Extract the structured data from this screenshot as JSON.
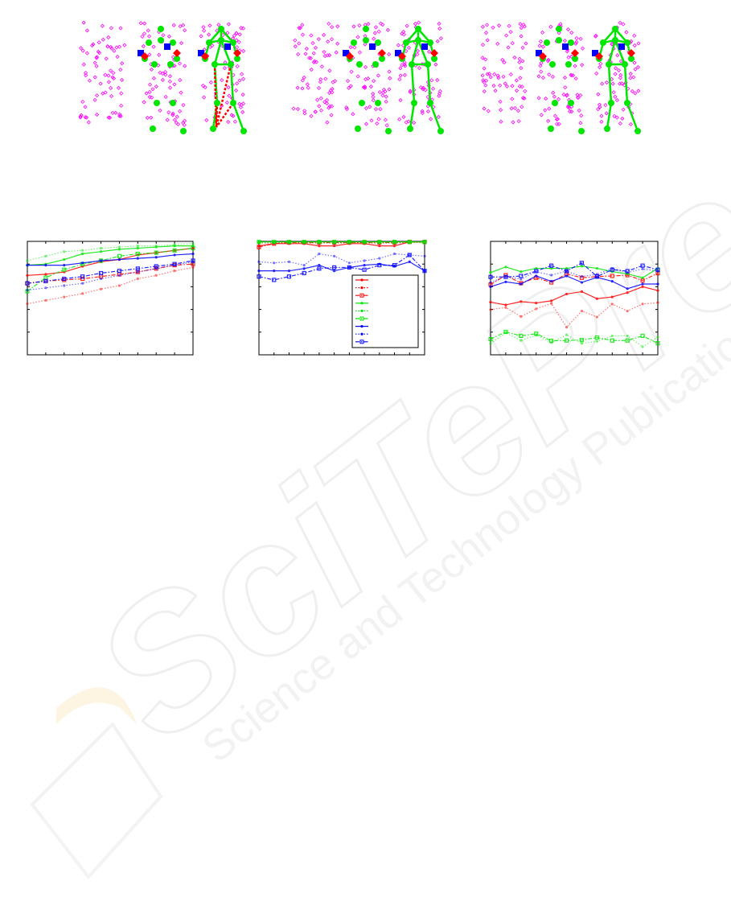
{
  "watermark": {
    "logo_text": "SciTePress",
    "tagline": "Science and Technology Publications"
  },
  "colors": {
    "red": "#ff0000",
    "green": "#00e600",
    "blue": "#0000ff",
    "magenta": "#ff00ff"
  },
  "figure_top": {
    "groups": 3,
    "panels_per_group": 3,
    "markers": [
      "magenta-diamond-points",
      "green-circle-joints",
      "blue-square-markers",
      "red-diamond-markers",
      "green-skeleton-lines",
      "red-dashed-skeleton-lines"
    ]
  },
  "chart_data": [
    {
      "type": "line",
      "title": "",
      "xlabel": "",
      "ylabel": "",
      "ylim": [
        0,
        1
      ],
      "grid": false,
      "legend": "none",
      "x": [
        1,
        2,
        3,
        4,
        5,
        6,
        7,
        8,
        9,
        10
      ],
      "series": [
        {
          "color": "#ff0000",
          "dash": "solid",
          "marker": "dot",
          "values": [
            0.7,
            0.71,
            0.73,
            0.78,
            0.82,
            0.84,
            0.88,
            0.9,
            0.92,
            0.94
          ]
        },
        {
          "color": "#ff0000",
          "dash": "dotted",
          "marker": "dot",
          "values": [
            0.45,
            0.48,
            0.51,
            0.54,
            0.58,
            0.61,
            0.67,
            0.7,
            0.74,
            0.77
          ]
        },
        {
          "color": "#ff0000",
          "dash": "dashdot",
          "marker": "square",
          "values": [
            0.63,
            0.65,
            0.66,
            0.67,
            0.69,
            0.71,
            0.73,
            0.76,
            0.79,
            0.8
          ]
        },
        {
          "color": "#00e600",
          "dash": "solid",
          "marker": "dot",
          "values": [
            0.79,
            0.8,
            0.84,
            0.89,
            0.91,
            0.93,
            0.94,
            0.95,
            0.96,
            0.96
          ]
        },
        {
          "color": "#00e600",
          "dash": "dotted",
          "marker": "dot",
          "values": [
            0.83,
            0.87,
            0.91,
            0.92,
            0.94,
            0.95,
            0.96,
            0.96,
            0.97,
            0.98
          ]
        },
        {
          "color": "#00e600",
          "dash": "dashdot",
          "marker": "square",
          "values": [
            0.56,
            0.68,
            0.75,
            0.8,
            0.83,
            0.87,
            0.89,
            0.9,
            0.92,
            0.94
          ]
        },
        {
          "color": "#0000ff",
          "dash": "solid",
          "marker": "dot",
          "values": [
            0.79,
            0.79,
            0.79,
            0.81,
            0.83,
            0.84,
            0.85,
            0.86,
            0.88,
            0.89
          ]
        },
        {
          "color": "#0000ff",
          "dash": "dotted",
          "marker": "dot",
          "values": [
            0.57,
            0.59,
            0.61,
            0.63,
            0.67,
            0.7,
            0.73,
            0.76,
            0.79,
            0.82
          ]
        },
        {
          "color": "#0000ff",
          "dash": "dashdot",
          "marker": "square",
          "values": [
            0.63,
            0.65,
            0.67,
            0.69,
            0.72,
            0.74,
            0.76,
            0.78,
            0.8,
            0.83
          ]
        }
      ]
    },
    {
      "type": "line",
      "title": "",
      "xlabel": "",
      "ylabel": "",
      "ylim": [
        0,
        1
      ],
      "grid": false,
      "legend": "bottom-right",
      "x": [
        1,
        2,
        3,
        4,
        5,
        6,
        7,
        8,
        9,
        10,
        11,
        12
      ],
      "series": [
        {
          "color": "#ff0000",
          "dash": "solid",
          "marker": "dot",
          "values": [
            0.96,
            0.98,
            0.98,
            0.98,
            0.96,
            0.96,
            0.98,
            0.98,
            0.96,
            0.96,
            0.995,
            0.995
          ]
        },
        {
          "color": "#ff0000",
          "dash": "dotted",
          "marker": "dot",
          "values": [
            0.985,
            0.985,
            0.985,
            0.985,
            0.985,
            0.985,
            0.985,
            0.985,
            0.985,
            0.985,
            0.99,
            0.99
          ]
        },
        {
          "color": "#ff0000",
          "dash": "dashdot",
          "marker": "square",
          "values": [
            0.95,
            0.98,
            0.99,
            0.99,
            0.99,
            0.99,
            0.99,
            0.99,
            0.99,
            0.99,
            0.995,
            0.995
          ]
        },
        {
          "color": "#00e600",
          "dash": "solid",
          "marker": "dot",
          "values": [
            0.995,
            0.995,
            0.995,
            0.995,
            0.995,
            0.995,
            0.995,
            0.995,
            0.995,
            0.995,
            0.995,
            0.995
          ]
        },
        {
          "color": "#00e600",
          "dash": "dotted",
          "marker": "dot",
          "values": [
            0.995,
            0.995,
            0.995,
            0.995,
            0.995,
            0.995,
            0.995,
            0.995,
            0.995,
            0.995,
            0.995,
            0.995
          ]
        },
        {
          "color": "#00e600",
          "dash": "dashdot",
          "marker": "square",
          "values": [
            0.995,
            0.995,
            0.995,
            0.995,
            0.995,
            0.995,
            0.995,
            0.995,
            0.995,
            0.995,
            0.995,
            0.995
          ]
        },
        {
          "color": "#0000ff",
          "dash": "solid",
          "marker": "dot",
          "values": [
            0.74,
            0.74,
            0.74,
            0.76,
            0.79,
            0.74,
            0.77,
            0.79,
            0.8,
            0.78,
            0.82,
            0.74
          ]
        },
        {
          "color": "#0000ff",
          "dash": "dotted",
          "marker": "dot",
          "values": [
            0.82,
            0.81,
            0.82,
            0.79,
            0.89,
            0.87,
            0.81,
            0.83,
            0.85,
            0.89,
            0.88,
            0.87
          ]
        },
        {
          "color": "#0000ff",
          "dash": "dashdot",
          "marker": "square",
          "values": [
            0.69,
            0.66,
            0.69,
            0.72,
            0.76,
            0.77,
            0.77,
            0.75,
            0.79,
            0.79,
            0.88,
            0.74
          ]
        }
      ]
    },
    {
      "type": "line",
      "title": "",
      "xlabel": "",
      "ylabel": "",
      "ylim": [
        0,
        1
      ],
      "grid": false,
      "legend": "none",
      "x": [
        1,
        2,
        3,
        4,
        5,
        6,
        7,
        8,
        9,
        10,
        11,
        12
      ],
      "series": [
        {
          "color": "#ff0000",
          "dash": "solid",
          "marker": "dot",
          "values": [
            0.464,
            0.44,
            0.469,
            0.457,
            0.476,
            0.536,
            0.557,
            0.495,
            0.51,
            0.548,
            0.6,
            0.567
          ]
        },
        {
          "color": "#ff0000",
          "dash": "dotted",
          "marker": "dot",
          "values": [
            0.398,
            0.417,
            0.338,
            0.405,
            0.452,
            0.243,
            0.386,
            0.333,
            0.448,
            0.386,
            0.448,
            0.46
          ]
        },
        {
          "color": "#ff0000",
          "dash": "dashdot",
          "marker": "square",
          "values": [
            0.619,
            0.702,
            0.631,
            0.679,
            0.638,
            0.714,
            0.679,
            0.69,
            0.695,
            0.702,
            0.655,
            0.719
          ]
        },
        {
          "color": "#00e600",
          "dash": "solid",
          "marker": "dot",
          "values": [
            0.726,
            0.774,
            0.733,
            0.762,
            0.762,
            0.762,
            0.781,
            0.762,
            0.733,
            0.714,
            0.679,
            0.762
          ]
        },
        {
          "color": "#00e600",
          "dash": "dotted",
          "marker": "dot",
          "values": [
            0.1,
            0.195,
            0.126,
            0.174,
            0.107,
            0.176,
            0.1,
            0.119,
            0.167,
            0.167,
            0.071,
            0.155
          ]
        },
        {
          "color": "#00e600",
          "dash": "dashdot",
          "marker": "square",
          "values": [
            0.138,
            0.202,
            0.167,
            0.186,
            0.124,
            0.126,
            0.131,
            0.152,
            0.126,
            0.126,
            0.167,
            0.102
          ]
        },
        {
          "color": "#0000ff",
          "dash": "solid",
          "marker": "dot",
          "values": [
            0.6,
            0.643,
            0.624,
            0.695,
            0.648,
            0.695,
            0.638,
            0.683,
            0.648,
            0.583,
            0.624,
            0.624
          ]
        },
        {
          "color": "#0000ff",
          "dash": "dotted",
          "marker": "dot",
          "values": [
            0.638,
            0.69,
            0.667,
            0.733,
            0.702,
            0.738,
            0.69,
            0.71,
            0.762,
            0.726,
            0.757,
            0.738
          ]
        },
        {
          "color": "#0000ff",
          "dash": "dashdot",
          "marker": "square",
          "values": [
            0.686,
            0.686,
            0.695,
            0.738,
            0.786,
            0.738,
            0.81,
            0.69,
            0.75,
            0.738,
            0.786,
            0.75
          ]
        }
      ]
    }
  ]
}
